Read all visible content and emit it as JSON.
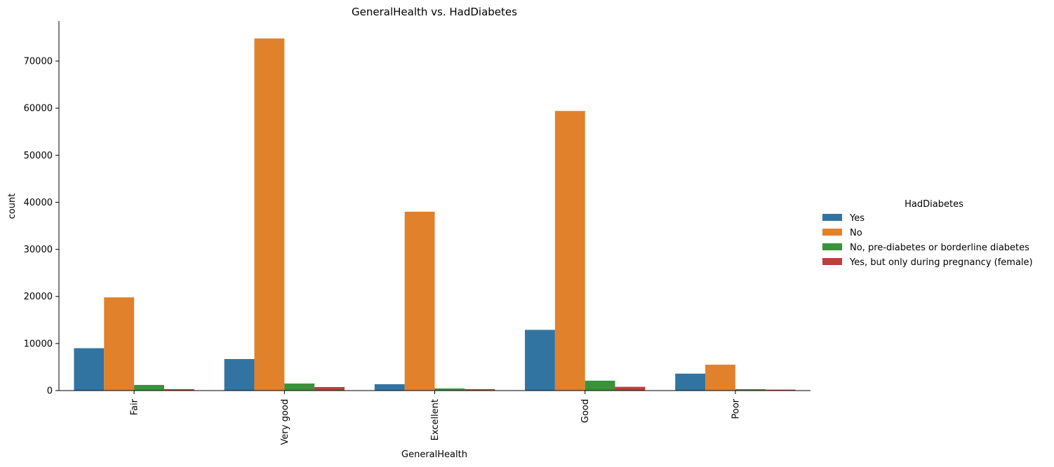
{
  "chart_data": {
    "type": "bar",
    "title": "GeneralHealth vs. HadDiabetes",
    "xlabel": "GeneralHealth",
    "ylabel": "count",
    "categories": [
      "Fair",
      "Very good",
      "Excellent",
      "Good",
      "Poor"
    ],
    "ylim": [
      0,
      78500
    ],
    "yticks": [
      0,
      10000,
      20000,
      30000,
      40000,
      50000,
      60000,
      70000
    ],
    "grid": false,
    "legend": {
      "title": "HadDiabetes",
      "placement": "right"
    },
    "series": [
      {
        "name": "Yes",
        "color": "#3274a1",
        "values": [
          9000,
          6700,
          1350,
          12900,
          3600
        ]
      },
      {
        "name": "No",
        "color": "#e1812c",
        "values": [
          19800,
          74800,
          38000,
          59400,
          5500
        ]
      },
      {
        "name": "No, pre-diabetes or borderline diabetes",
        "color": "#3a923a",
        "values": [
          1200,
          1500,
          450,
          2100,
          300
        ]
      },
      {
        "name": "Yes, but only during pregnancy (female)",
        "color": "#c03d3e",
        "values": [
          300,
          750,
          300,
          800,
          200
        ]
      }
    ]
  }
}
